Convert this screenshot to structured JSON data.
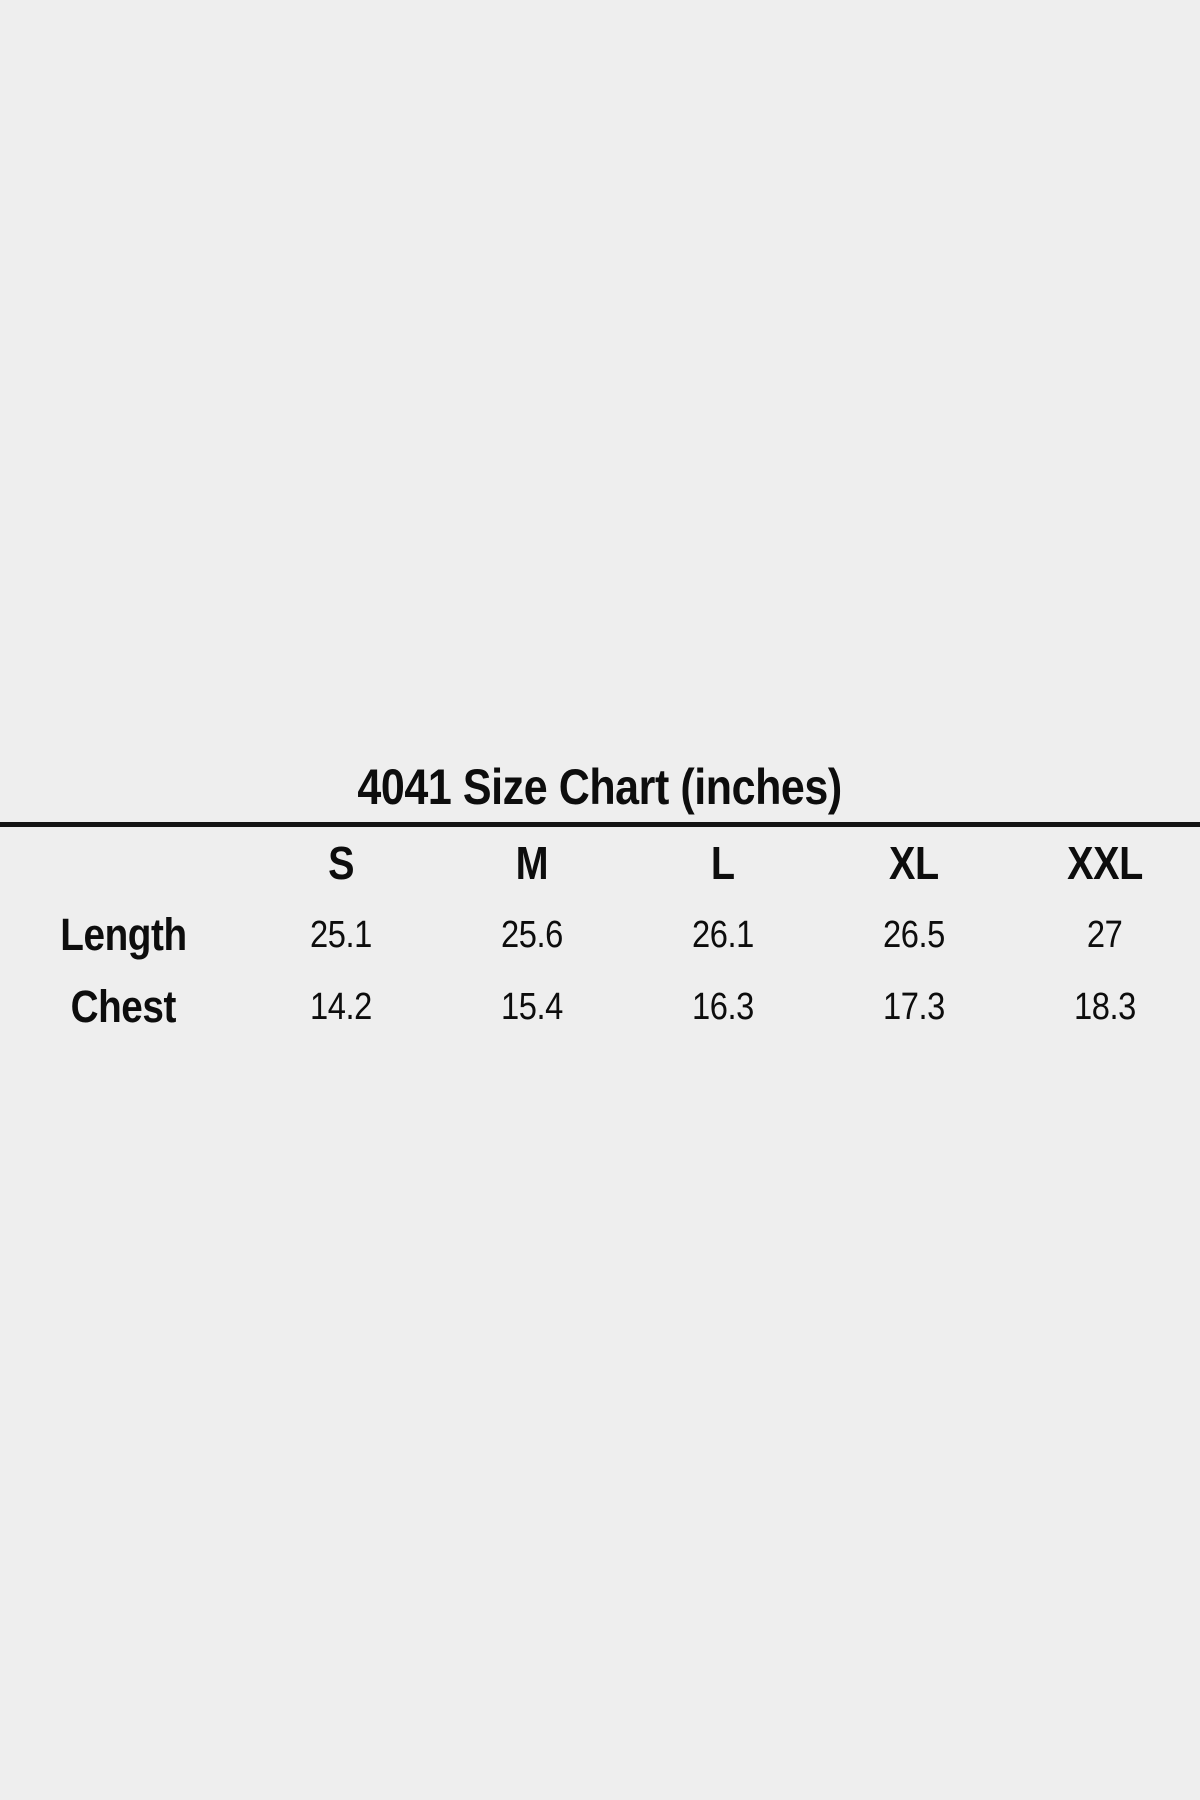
{
  "page": {
    "background_color": "#eeeeee",
    "text_color": "#0d0d0d",
    "rule_color": "#141414"
  },
  "table": {
    "title": "4041 Size Chart (inches)",
    "columns": [
      "S",
      "M",
      "L",
      "XL",
      "XXL"
    ],
    "rows": [
      {
        "label": "Length",
        "values": [
          "25.1",
          "25.6",
          "26.1",
          "26.5",
          "27"
        ]
      },
      {
        "label": "Chest",
        "values": [
          "14.2",
          "15.4",
          "16.3",
          "17.3",
          "18.3"
        ]
      }
    ]
  },
  "chart_data": {
    "type": "table",
    "title": "4041 Size Chart (inches)",
    "unit": "inches",
    "columns": [
      "S",
      "M",
      "L",
      "XL",
      "XXL"
    ],
    "rows": [
      {
        "label": "Length",
        "values": [
          25.1,
          25.6,
          26.1,
          26.5,
          27
        ]
      },
      {
        "label": "Chest",
        "values": [
          14.2,
          15.4,
          16.3,
          17.3,
          18.3
        ]
      }
    ],
    "layout_hints": {
      "title_position": "top-center",
      "divider_under_title": true,
      "grid": false
    }
  }
}
